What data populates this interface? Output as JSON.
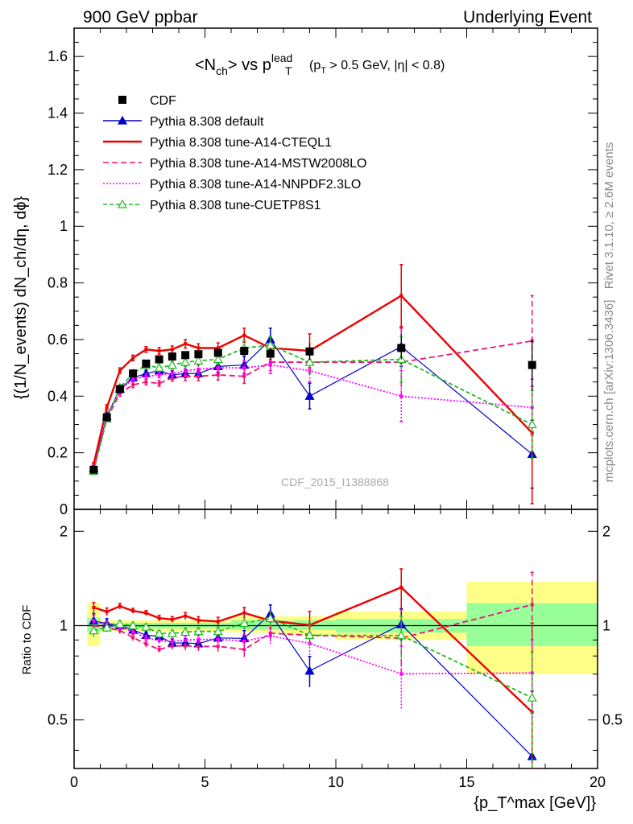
{
  "header": {
    "left": "900 GeV ppbar",
    "right": "Underlying Event"
  },
  "side": {
    "rivet": "Rivet 3.1.10, ≥ 2.6M events",
    "mcplots": "mcplots.cern.ch [arXiv:1306.3436]"
  },
  "plot_title": {
    "main": "<N",
    "sub_ch": "ch",
    "mid": "> vs p",
    "sup_lead": "lead",
    "sub_T": "T",
    "tail_a": "(p",
    "tail_sub": "T",
    "tail_b": " > 0.5 GeV, |η| < 0.8)"
  },
  "ylabel_main": "{(1/N_events) dN_ch/dη, dϕ}",
  "ylabel_ratio": "Ratio to CDF",
  "xlabel": "{p_T^max [GeV]}",
  "watermark": "CDF_2015_I1388868",
  "colors": {
    "data": "#000000",
    "default": "#0000cc",
    "cteql1": "#ee0000",
    "mstw": "#ee1177",
    "nnpdf": "#ff00ff",
    "cuetp": "#22bb22",
    "band_yellow": "#ffff88",
    "band_green": "#99ff99"
  },
  "chart_data": {
    "type": "scatter",
    "x_axis": {
      "range": [
        0,
        20
      ],
      "ticks": [
        0,
        5,
        10,
        15,
        20
      ],
      "label": "{p_T^max [GeV]}"
    },
    "main_y_axis": {
      "range": [
        0,
        1.7
      ],
      "ticks": [
        0,
        0.2,
        0.4,
        0.6,
        0.8,
        1,
        1.2,
        1.4,
        1.6
      ]
    },
    "ratio_y_axis": {
      "range": [
        0.35,
        2.35
      ],
      "scale": "log",
      "ticks": [
        0.5,
        1,
        2
      ]
    },
    "legend": [
      "CDF",
      "Pythia 8.308 default",
      "Pythia 8.308 tune-A14-CTEQL1",
      "Pythia 8.308 tune-A14-MSTW2008LO",
      "Pythia 8.308 tune-A14-NNPDF2.3LO",
      "Pythia 8.308 tune-CUETP8S1"
    ],
    "data": {
      "name": "CDF",
      "x": [
        0.75,
        1.25,
        1.75,
        2.25,
        2.75,
        3.25,
        3.75,
        4.25,
        4.75,
        5.5,
        6.5,
        7.5,
        9.0,
        12.5,
        17.5
      ],
      "xerr": [
        0.25,
        0.25,
        0.25,
        0.25,
        0.25,
        0.25,
        0.25,
        0.25,
        0.25,
        0.5,
        0.5,
        0.5,
        1.0,
        2.5,
        2.5
      ],
      "y": [
        0.14,
        0.325,
        0.425,
        0.48,
        0.515,
        0.53,
        0.54,
        0.545,
        0.548,
        0.553,
        0.56,
        0.55,
        0.558,
        0.57,
        0.51
      ],
      "yerr": [
        0.01,
        0.01,
        0.01,
        0.01,
        0.01,
        0.01,
        0.01,
        0.01,
        0.01,
        0.012,
        0.015,
        0.02,
        0.03,
        0.04,
        0.09
      ]
    },
    "series": [
      {
        "name": "Pythia 8.308 default",
        "key": "default",
        "marker": "tri-fill",
        "dash": "",
        "x": [
          0.75,
          1.25,
          1.75,
          2.25,
          2.75,
          3.25,
          3.75,
          4.25,
          4.75,
          5.5,
          6.5,
          7.5,
          9.0,
          12.5,
          17.5
        ],
        "y": [
          0.145,
          0.33,
          0.425,
          0.465,
          0.48,
          0.49,
          0.475,
          0.48,
          0.48,
          0.505,
          0.51,
          0.6,
          0.4,
          0.575,
          0.195
        ],
        "yerr": [
          0.008,
          0.012,
          0.012,
          0.012,
          0.012,
          0.012,
          0.015,
          0.015,
          0.015,
          0.02,
          0.03,
          0.04,
          0.045,
          0.07,
          0.12
        ]
      },
      {
        "name": "Pythia 8.308 tune-A14-CTEQL1",
        "key": "cteql1",
        "marker": "none",
        "dash": "",
        "x": [
          0.75,
          1.25,
          1.75,
          2.25,
          2.75,
          3.25,
          3.75,
          4.25,
          4.75,
          5.5,
          6.5,
          7.5,
          9.0,
          12.5,
          17.5
        ],
        "y": [
          0.16,
          0.36,
          0.49,
          0.535,
          0.565,
          0.56,
          0.565,
          0.585,
          0.57,
          0.57,
          0.615,
          0.57,
          0.56,
          0.755,
          0.27
        ],
        "yerr": [
          0.006,
          0.01,
          0.01,
          0.01,
          0.01,
          0.012,
          0.012,
          0.015,
          0.015,
          0.018,
          0.025,
          0.04,
          0.06,
          0.11,
          0.25
        ]
      },
      {
        "name": "Pythia 8.308 tune-A14-MSTW2008LO",
        "key": "mstw",
        "marker": "none",
        "dash": "7,4",
        "x": [
          0.75,
          1.25,
          1.75,
          2.25,
          2.75,
          3.25,
          3.75,
          4.25,
          4.75,
          5.5,
          6.5,
          7.5,
          9.0,
          12.5,
          17.5
        ],
        "y": [
          0.14,
          0.32,
          0.41,
          0.44,
          0.45,
          0.445,
          0.465,
          0.47,
          0.47,
          0.475,
          0.47,
          0.52,
          0.52,
          0.52,
          0.595
        ],
        "yerr": [
          0.006,
          0.01,
          0.01,
          0.01,
          0.01,
          0.01,
          0.012,
          0.015,
          0.015,
          0.018,
          0.025,
          0.03,
          0.04,
          0.12,
          0.16
        ]
      },
      {
        "name": "Pythia 8.308 tune-A14-NNPDF2.3LO",
        "key": "nnpdf",
        "marker": "none",
        "dash": "2,2",
        "x": [
          0.75,
          1.25,
          1.75,
          2.25,
          2.75,
          3.25,
          3.75,
          4.25,
          4.75,
          5.5,
          6.5,
          7.5,
          9.0,
          12.5,
          17.5
        ],
        "y": [
          0.145,
          0.325,
          0.42,
          0.46,
          0.47,
          0.475,
          0.48,
          0.49,
          0.495,
          0.5,
          0.5,
          0.51,
          0.49,
          0.4,
          0.36
        ],
        "yerr": [
          0.006,
          0.01,
          0.01,
          0.01,
          0.01,
          0.01,
          0.012,
          0.015,
          0.015,
          0.018,
          0.025,
          0.03,
          0.04,
          0.09,
          0.1
        ]
      },
      {
        "name": "Pythia 8.308 tune-CUETP8S1",
        "key": "cuetp",
        "marker": "tri-open",
        "dash": "5,3",
        "x": [
          0.75,
          1.25,
          1.75,
          2.25,
          2.75,
          3.25,
          3.75,
          4.25,
          4.75,
          5.5,
          6.5,
          7.5,
          9.0,
          12.5,
          17.5
        ],
        "y": [
          0.135,
          0.32,
          0.43,
          0.48,
          0.51,
          0.5,
          0.51,
          0.52,
          0.525,
          0.53,
          0.57,
          0.58,
          0.52,
          0.53,
          0.3
        ],
        "yerr": [
          0.006,
          0.01,
          0.01,
          0.01,
          0.01,
          0.01,
          0.012,
          0.015,
          0.015,
          0.018,
          0.025,
          0.03,
          0.04,
          0.08,
          0.12
        ]
      }
    ],
    "ratio_bands": [
      {
        "x0": 0.5,
        "x1": 1.0,
        "yellow": [
          0.86,
          1.18
        ],
        "green": [
          0.95,
          1.06
        ]
      },
      {
        "x0": 1.0,
        "x1": 6.0,
        "yellow": [
          0.96,
          1.04
        ],
        "green": [
          0.98,
          1.02
        ]
      },
      {
        "x0": 6.0,
        "x1": 8.0,
        "yellow": [
          0.95,
          1.07
        ],
        "green": [
          0.97,
          1.04
        ]
      },
      {
        "x0": 8.0,
        "x1": 10.0,
        "yellow": [
          0.93,
          1.07
        ],
        "green": [
          0.97,
          1.04
        ]
      },
      {
        "x0": 10.0,
        "x1": 15.0,
        "yellow": [
          0.9,
          1.11
        ],
        "green": [
          0.95,
          1.05
        ]
      },
      {
        "x0": 15.0,
        "x1": 20.0,
        "yellow": [
          0.7,
          1.38
        ],
        "green": [
          0.86,
          1.18
        ]
      }
    ]
  }
}
